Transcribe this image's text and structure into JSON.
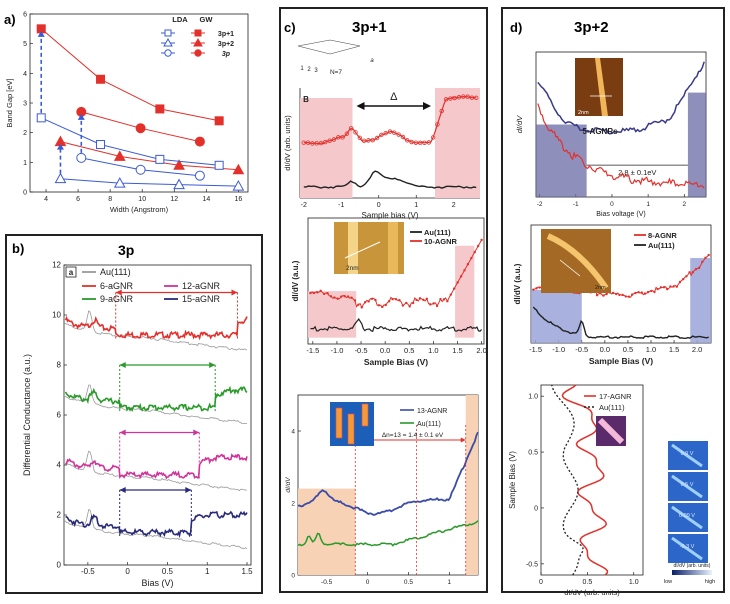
{
  "panels": {
    "a": {
      "label": "a)"
    },
    "b": {
      "label": "b)",
      "title": "3p"
    },
    "c": {
      "label": "c)",
      "title": "3p+1"
    },
    "d": {
      "label": "d)",
      "title": "3p+2"
    }
  },
  "colors": {
    "red": "#e3302b",
    "blue": "#3b5bd6",
    "green": "#2a9a2a",
    "magenta": "#d0349a",
    "navy": "#2a2a7a",
    "gray": "#9a9a9a",
    "black": "#222222",
    "pink_fill": "#f5c9cc",
    "violet_fill": "#6a6aa6"
  },
  "chart_data": [
    {
      "id": "a",
      "type": "line",
      "title": "",
      "xlabel": "Width (Angstrom)",
      "ylabel": "Band Gap [eV]",
      "xlim": [
        3,
        16.6
      ],
      "ylim": [
        0,
        6
      ],
      "xticks": [
        "4",
        "6",
        "8",
        "10",
        "12",
        "14",
        "16"
      ],
      "yticks": [
        "0",
        "1",
        "2",
        "3",
        "4",
        "5",
        "6"
      ],
      "legend_headers": [
        "LDA",
        "GW"
      ],
      "legend_rows": [
        "3p+1",
        "3p+2",
        "3p"
      ],
      "series": [
        {
          "name": "3p+1",
          "method": "GW",
          "x": [
            3.7,
            7.4,
            11.1,
            14.8
          ],
          "y": [
            5.5,
            3.8,
            2.8,
            2.4
          ]
        },
        {
          "name": "3p+2",
          "method": "GW",
          "x": [
            4.9,
            8.6,
            12.3,
            16.0
          ],
          "y": [
            1.7,
            1.2,
            0.9,
            0.75
          ]
        },
        {
          "name": "3p",
          "method": "GW",
          "x": [
            6.2,
            9.9,
            13.6
          ],
          "y": [
            2.7,
            2.15,
            1.7
          ]
        },
        {
          "name": "3p+1",
          "method": "LDA",
          "x": [
            3.7,
            7.4,
            11.1,
            14.8
          ],
          "y": [
            2.5,
            1.6,
            1.1,
            0.9
          ]
        },
        {
          "name": "3p+2",
          "method": "LDA",
          "x": [
            4.9,
            8.6,
            12.3,
            16.0
          ],
          "y": [
            0.45,
            0.3,
            0.25,
            0.2
          ]
        },
        {
          "name": "3p",
          "method": "LDA",
          "x": [
            6.2,
            9.9,
            13.6
          ],
          "y": [
            1.15,
            0.75,
            0.55
          ]
        }
      ]
    },
    {
      "id": "b",
      "type": "line",
      "title": "3p",
      "xlabel": "Bias (V)",
      "ylabel": "Differential Conductance (a.u.)",
      "xlim": [
        -0.8,
        1.55
      ],
      "ylim": [
        0,
        12
      ],
      "xticks": [
        "-0.5",
        "0",
        "0.5",
        "1",
        "1.5"
      ],
      "yticks": [
        "0",
        "2",
        "4",
        "6",
        "8",
        "10",
        "12"
      ],
      "inset_label": "a",
      "legend": [
        "Au(111)",
        "6-aGNR",
        "12-aGNR",
        "9-aGNR",
        "15-aGNR"
      ],
      "series": [
        {
          "name": "6-aGNR",
          "offset": 9.2,
          "gap": [
            -0.15,
            1.38
          ]
        },
        {
          "name": "9-aGNR",
          "offset": 6.3,
          "gap": [
            -0.1,
            1.1
          ]
        },
        {
          "name": "12-aGNR",
          "offset": 3.6,
          "gap": [
            -0.1,
            0.9
          ]
        },
        {
          "name": "15-aGNR",
          "offset": 1.3,
          "gap": [
            -0.1,
            0.8
          ]
        }
      ]
    },
    {
      "id": "c1",
      "type": "line",
      "xlabel": "Sample bias (V)",
      "ylabel": "dI/dV (arb. units)",
      "xlim": [
        -2.1,
        2.7
      ],
      "xticks": [
        "-2",
        "-1",
        "0",
        "1",
        "2"
      ],
      "annotation": "Δ",
      "inset_text": "N=7",
      "inset_letters": [
        "1",
        "2",
        "3",
        "a"
      ],
      "corner_label": "B",
      "gap": [
        -0.7,
        1.5
      ]
    },
    {
      "id": "c2",
      "type": "line",
      "xlabel": "Sample Bias (V)",
      "ylabel": "dI/dV (a.u.)",
      "xlim": [
        -1.6,
        2.05
      ],
      "xticks": [
        "-1.5",
        "-1.0",
        "-0.5",
        "0.0",
        "0.5",
        "1.0",
        "1.5",
        "2.0"
      ],
      "legend": [
        "Au(111)",
        "10-AGNR"
      ],
      "scale_label": "2nm",
      "gap": [
        -0.6,
        1.45
      ]
    },
    {
      "id": "c3",
      "type": "line",
      "xlabel": "",
      "ylabel": "dI/dV",
      "xlim": [
        -0.85,
        1.35
      ],
      "ylim": [
        0,
        5
      ],
      "xticks": [
        "-0.5",
        "0",
        "0.5",
        "1"
      ],
      "yticks": [
        "0",
        "2",
        "4"
      ],
      "legend": [
        "13-AGNR",
        "Au(111)"
      ],
      "annotation": "Δn=13 = 1.4 ± 0.1 eV",
      "gap": [
        -0.15,
        1.2
      ],
      "marker": 0.6
    },
    {
      "id": "d1",
      "type": "line",
      "xlabel": "Bias voltage (V)",
      "ylabel": "dI/dV",
      "xlim": [
        -2.1,
        2.6
      ],
      "xticks": [
        "-2",
        "-1",
        "0",
        "1",
        "2"
      ],
      "inset_label": "5-AGNRs",
      "scale_label": "2nm",
      "annotation": "2.8 ± 0.1eV",
      "gap": [
        -0.7,
        2.1
      ]
    },
    {
      "id": "d2",
      "type": "line",
      "xlabel": "Sample Bias (V)",
      "ylabel": "dI/dV (a.u.)",
      "xlim": [
        -1.6,
        2.3
      ],
      "xticks": [
        "-1.5",
        "-1.0",
        "-0.5",
        "0.0",
        "0.5",
        "1.0",
        "1.5",
        "2.0"
      ],
      "legend": [
        "8-AGNR",
        "Au(111)"
      ],
      "scale_label": "2nm",
      "gap": [
        -0.5,
        1.85
      ]
    },
    {
      "id": "d3",
      "type": "line",
      "xlabel": "dI/dV (arb. units)",
      "ylabel": "Sample Bias (V)",
      "xlim": [
        0,
        1.1
      ],
      "ylim": [
        -0.6,
        1.1
      ],
      "xticks": [
        "0",
        "0.5",
        "1.0"
      ],
      "yticks": [
        "-0.5",
        "0",
        "0.5",
        "1.0"
      ],
      "legend": [
        "17-AGNR",
        "Au(111)"
      ],
      "colorbar_title": "dI/dV (arb. units)",
      "colorbar_ticks": [
        "low",
        "high"
      ],
      "map_labels": [
        "0.9 V",
        "0.5 V",
        "0.09 V",
        "-0.3 V"
      ]
    }
  ]
}
